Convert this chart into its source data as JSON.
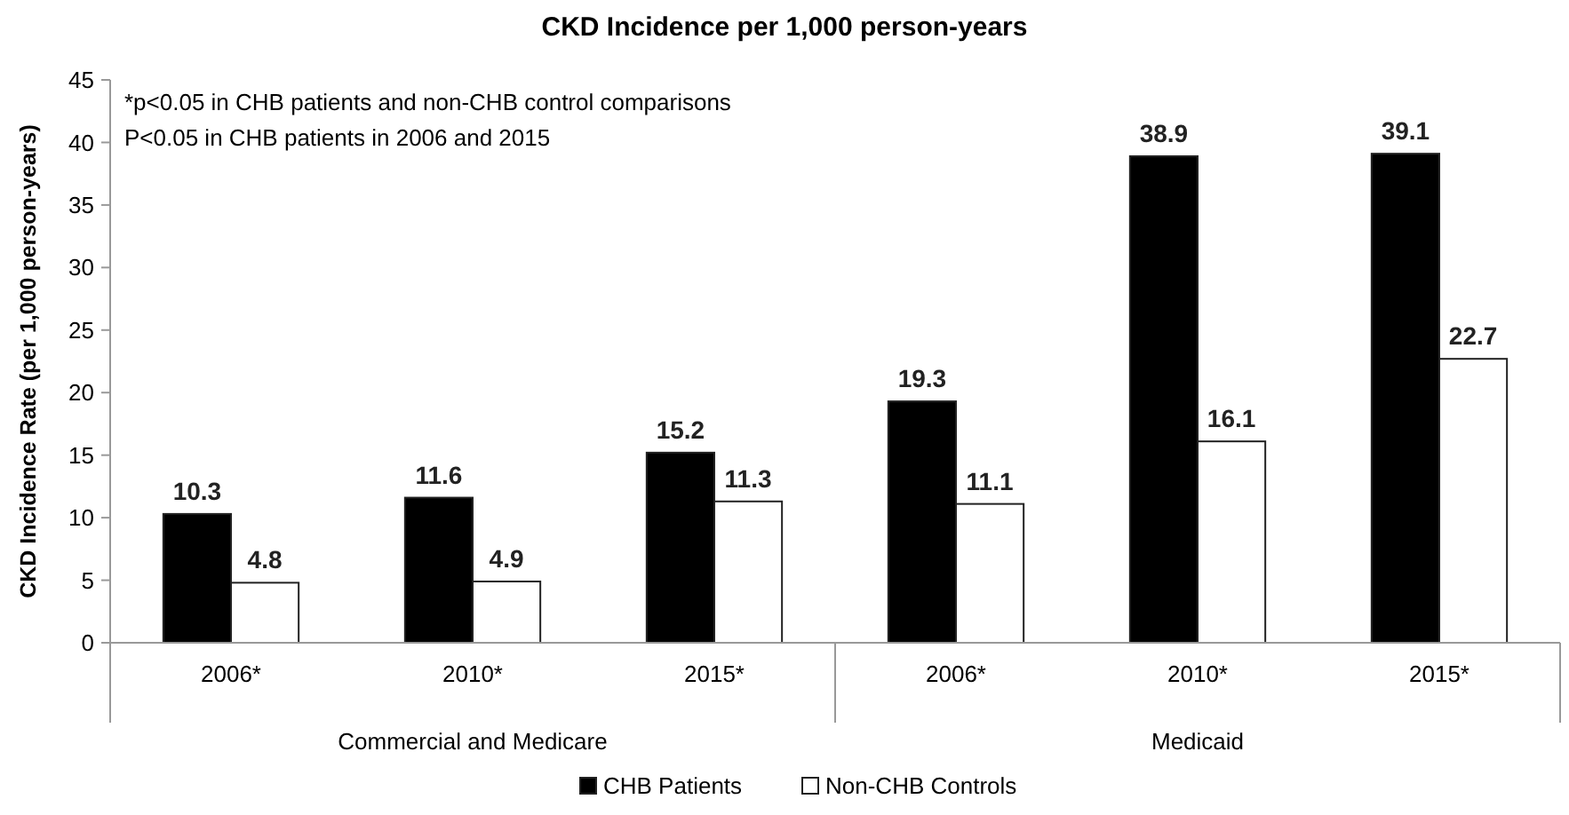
{
  "chart_data": {
    "type": "bar",
    "title": "CKD Incidence per 1,000 person-years",
    "ylabel": "CKD Incidence Rate (per 1,000 person-years)",
    "categories": [
      "2006*",
      "2010*",
      "2015*",
      "2006*",
      "2010*",
      "2015*"
    ],
    "series": [
      {
        "name": "CHB Patients",
        "color": "#000000",
        "values": [
          10.3,
          11.6,
          15.2,
          19.3,
          38.9,
          39.1
        ]
      },
      {
        "name": "Non-CHB Controls",
        "color": "#ffffff",
        "values": [
          4.8,
          4.9,
          11.3,
          11.1,
          16.1,
          22.7
        ]
      }
    ],
    "ylim": [
      0,
      45
    ],
    "yticks": [
      0,
      5,
      10,
      15,
      20,
      25,
      30,
      35,
      40,
      45
    ],
    "grid": false,
    "legend": "bottom",
    "data_labels": true,
    "annotations": [
      "*p<0.05 in CHB patients and non-CHB control comparisons",
      "P<0.05 in CHB patients in 2006 and 2015",
      "Commercial and Medicare",
      "Medicaid"
    ]
  }
}
